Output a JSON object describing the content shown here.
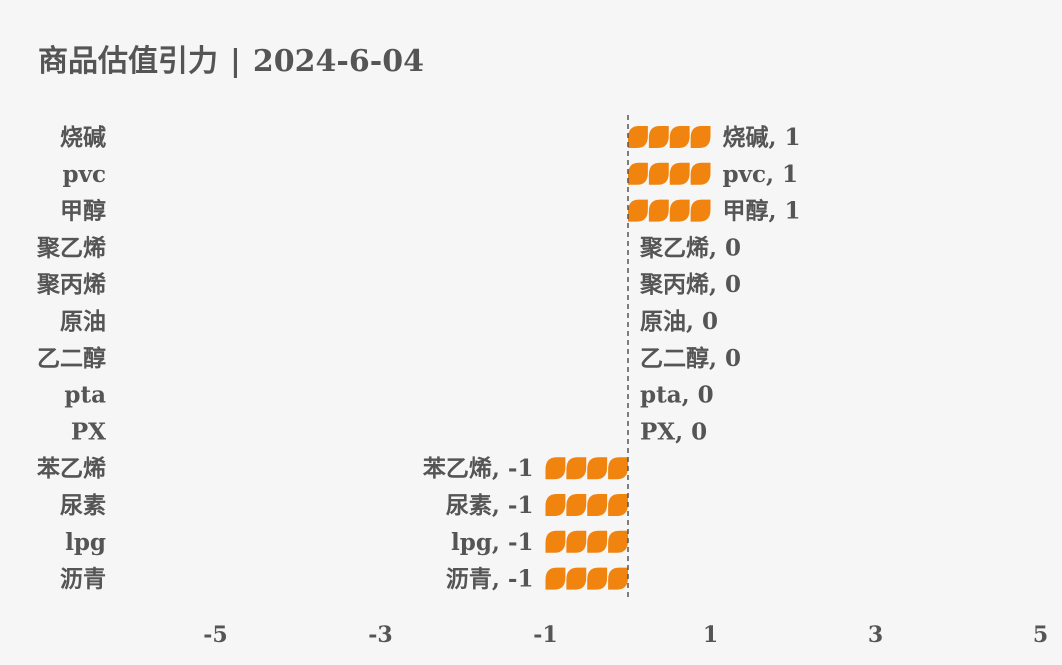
{
  "title": {
    "main": "商品估值引力",
    "separator": "|",
    "date": "2024-6-04"
  },
  "colors": {
    "background": "#f6f6f6",
    "bar": "#f0840e",
    "text": "#555555",
    "zero_line": "#555555"
  },
  "chart_data": {
    "type": "bar",
    "orientation": "horizontal",
    "title": "商品估值引力 | 2024-6-04",
    "categories": [
      "烧碱",
      "pvc",
      "甲醇",
      "聚乙烯",
      "聚丙烯",
      "原油",
      "乙二醇",
      "pta",
      "PX",
      "苯乙烯",
      "尿素",
      "lpg",
      "沥青"
    ],
    "values": [
      1,
      1,
      1,
      0,
      0,
      0,
      0,
      0,
      0,
      -1,
      -1,
      -1,
      -1
    ],
    "data_labels": [
      "烧碱, 1",
      "pvc, 1",
      "甲醇, 1",
      "聚乙烯, 0",
      "聚丙烯, 0",
      "原油, 0",
      "乙二醇, 0",
      "pta, 0",
      "PX, 0",
      "苯乙烯, -1",
      "尿素, -1",
      "lpg, -1",
      "沥青, -1"
    ],
    "xticks": [
      "-5",
      "-3",
      "-1",
      "1",
      "3",
      "5"
    ],
    "xtick_values": [
      -5,
      -3,
      -1,
      1,
      3,
      5
    ],
    "xlim": [
      -5,
      5
    ],
    "zero_line": "dashed",
    "grid": false,
    "legend": "none",
    "bar_style": "pictorial leaf segments"
  }
}
